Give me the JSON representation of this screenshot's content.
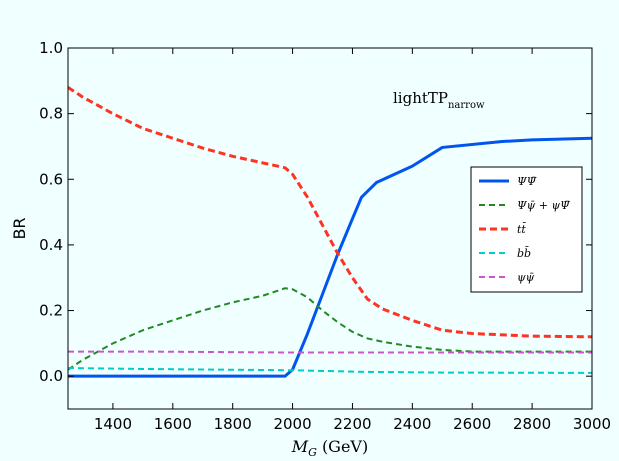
{
  "chart_data": {
    "type": "line",
    "title": "",
    "xlabel_main": "M",
    "xlabel_sub": "G",
    "xlabel_unit": "(GeV)",
    "ylabel": "BR",
    "xlim": [
      1250,
      3000
    ],
    "ylim": [
      -0.1,
      1.0
    ],
    "xticks": [
      1400,
      1600,
      1800,
      2000,
      2200,
      2400,
      2600,
      2800,
      3000
    ],
    "yticks": [
      0.0,
      0.2,
      0.4,
      0.6,
      0.8,
      1.0
    ],
    "ytick_labels": [
      "0.0",
      "0.2",
      "0.4",
      "0.6",
      "0.8",
      "1.0"
    ],
    "grid": false,
    "legend_position": "right",
    "annotation": {
      "main": "lightTP",
      "sub": "narrow"
    },
    "series": [
      {
        "name": "ΨΨ̄",
        "color": "#0055ee",
        "dash": "solid",
        "width": 3,
        "x": [
          1250,
          1950,
          1975,
          2000,
          2050,
          2100,
          2150,
          2200,
          2230,
          2280,
          2400,
          2500,
          2700,
          2800,
          3000
        ],
        "y": [
          0.0,
          0.0,
          0.0,
          0.02,
          0.13,
          0.25,
          0.37,
          0.48,
          0.545,
          0.59,
          0.64,
          0.697,
          0.715,
          0.72,
          0.725
        ]
      },
      {
        "name": "Ψψ̄ + ψΨ̄",
        "color": "#228822",
        "dash": "dashed",
        "width": 2,
        "x": [
          1250,
          1300,
          1400,
          1500,
          1600,
          1700,
          1800,
          1900,
          1975,
          2000,
          2050,
          2100,
          2150,
          2200,
          2250,
          2300,
          2400,
          2500,
          2600,
          2800,
          3000
        ],
        "y": [
          0.02,
          0.05,
          0.1,
          0.14,
          0.17,
          0.2,
          0.225,
          0.245,
          0.268,
          0.265,
          0.24,
          0.2,
          0.165,
          0.135,
          0.115,
          0.105,
          0.09,
          0.08,
          0.075,
          0.075,
          0.075
        ]
      },
      {
        "name": "tt̄",
        "color": "#ff3322",
        "dash": "dashed",
        "width": 3,
        "x": [
          1250,
          1300,
          1400,
          1500,
          1600,
          1700,
          1800,
          1900,
          1975,
          2000,
          2050,
          2100,
          2150,
          2200,
          2250,
          2300,
          2400,
          2500,
          2600,
          2800,
          3000
        ],
        "y": [
          0.88,
          0.85,
          0.8,
          0.755,
          0.725,
          0.695,
          0.67,
          0.65,
          0.635,
          0.615,
          0.545,
          0.46,
          0.375,
          0.3,
          0.235,
          0.205,
          0.17,
          0.14,
          0.13,
          0.122,
          0.12
        ]
      },
      {
        "name": "bb̄",
        "color": "#00cccc",
        "dash": "dashed",
        "width": 2,
        "x": [
          1250,
          1500,
          2000,
          2250,
          2500,
          3000
        ],
        "y": [
          0.025,
          0.022,
          0.018,
          0.013,
          0.011,
          0.01
        ]
      },
      {
        "name": "ψψ̄",
        "color": "#cc55cc",
        "dash": "dashed",
        "width": 2,
        "x": [
          1250,
          1500,
          2000,
          2500,
          3000
        ],
        "y": [
          0.075,
          0.075,
          0.072,
          0.072,
          0.072
        ]
      }
    ]
  }
}
